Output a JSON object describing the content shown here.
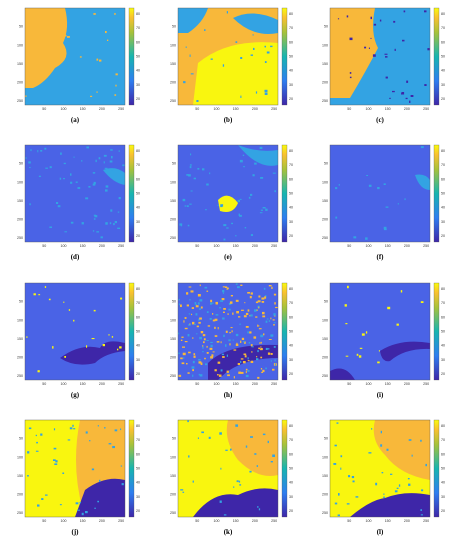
{
  "panels": [
    {
      "label": "(a)"
    },
    {
      "label": "(b)"
    },
    {
      "label": "(c)"
    },
    {
      "label": "(d)"
    },
    {
      "label": "(e)"
    },
    {
      "label": "(f)"
    },
    {
      "label": "(g)"
    },
    {
      "label": "(h)"
    },
    {
      "label": "(i)"
    },
    {
      "label": "(j)"
    },
    {
      "label": "(k)"
    },
    {
      "label": "(l)"
    }
  ],
  "axes": {
    "xticks": [
      50,
      100,
      150,
      200,
      250
    ],
    "yticks": [
      50,
      100,
      150,
      200,
      250
    ],
    "colorbar_ticks": [
      20,
      30,
      40,
      50,
      60,
      70,
      80
    ]
  }
}
